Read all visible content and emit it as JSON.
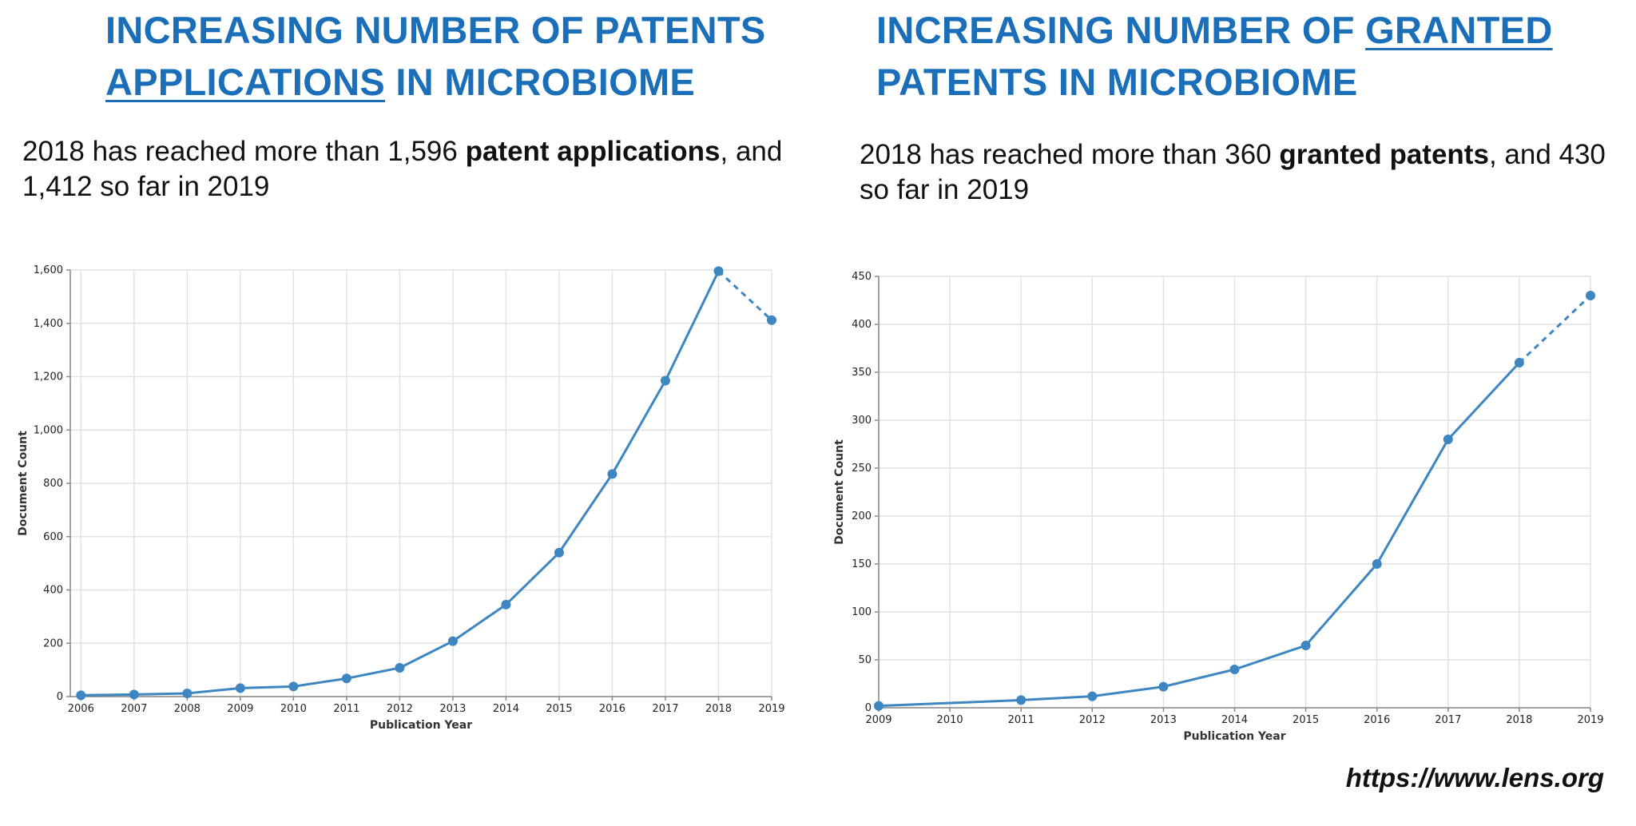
{
  "left_panel": {
    "title_part1": "INCREASING NUMBER OF PATENTS",
    "title_underlined": "APPLICATIONS",
    "title_part2": "IN MICROBIOME",
    "summary_text1": "2018 has reached more than 1,596 ",
    "summary_bold": "patent applications",
    "summary_text2": ", and 1,412 so far in 2019"
  },
  "right_panel": {
    "title_part1": "INCREASING NUMBER OF",
    "title_underlined": "GRANTED",
    "title_part2": "PATENTS IN MICROBIOME",
    "summary_text1": "2018 has reached more than 360 ",
    "summary_bold": "granted patents",
    "summary_text2": ", and 430 so far in 2019"
  },
  "source": "https://www.lens.org",
  "colors": {
    "heading": "#1a6fb8",
    "series": "#3d86c1",
    "grid": "#e2e2e2"
  },
  "chart_data": [
    {
      "type": "line",
      "title": "Patent applications in microbiome",
      "xlabel": "Publication Year",
      "ylabel": "Document Count",
      "x": [
        2006,
        2007,
        2008,
        2009,
        2010,
        2011,
        2012,
        2013,
        2014,
        2015,
        2016,
        2017,
        2018,
        2019
      ],
      "values": [
        5,
        8,
        12,
        32,
        38,
        68,
        108,
        208,
        345,
        540,
        835,
        1185,
        1596,
        1412
      ],
      "xlim": [
        2005.8,
        2019
      ],
      "ylim": [
        0,
        1600
      ],
      "yticks": [
        0,
        200,
        400,
        600,
        800,
        1000,
        1200,
        1400,
        1600
      ],
      "ytick_labels": [
        "0",
        "200",
        "400",
        "600",
        "800",
        "1,000",
        "1,200",
        "1,400",
        "1,600"
      ],
      "dashed_last_segment": true,
      "grid": true
    },
    {
      "type": "line",
      "title": "Granted patents in microbiome",
      "xlabel": "Publication Year",
      "ylabel": "Document Count",
      "x": [
        2009,
        2011,
        2012,
        2013,
        2014,
        2015,
        2016,
        2017,
        2018,
        2019
      ],
      "values": [
        2,
        8,
        12,
        22,
        40,
        65,
        150,
        280,
        360,
        430
      ],
      "xlim": [
        2009,
        2019
      ],
      "ylim": [
        0,
        450
      ],
      "xticks": [
        2009,
        2010,
        2011,
        2012,
        2013,
        2014,
        2015,
        2016,
        2017,
        2018,
        2019
      ],
      "yticks": [
        0,
        50,
        100,
        150,
        200,
        250,
        300,
        350,
        400,
        450
      ],
      "ytick_labels": [
        "0",
        "50",
        "100",
        "150",
        "200",
        "250",
        "300",
        "350",
        "400",
        "450"
      ],
      "dashed_last_segment": true,
      "grid": true
    }
  ]
}
